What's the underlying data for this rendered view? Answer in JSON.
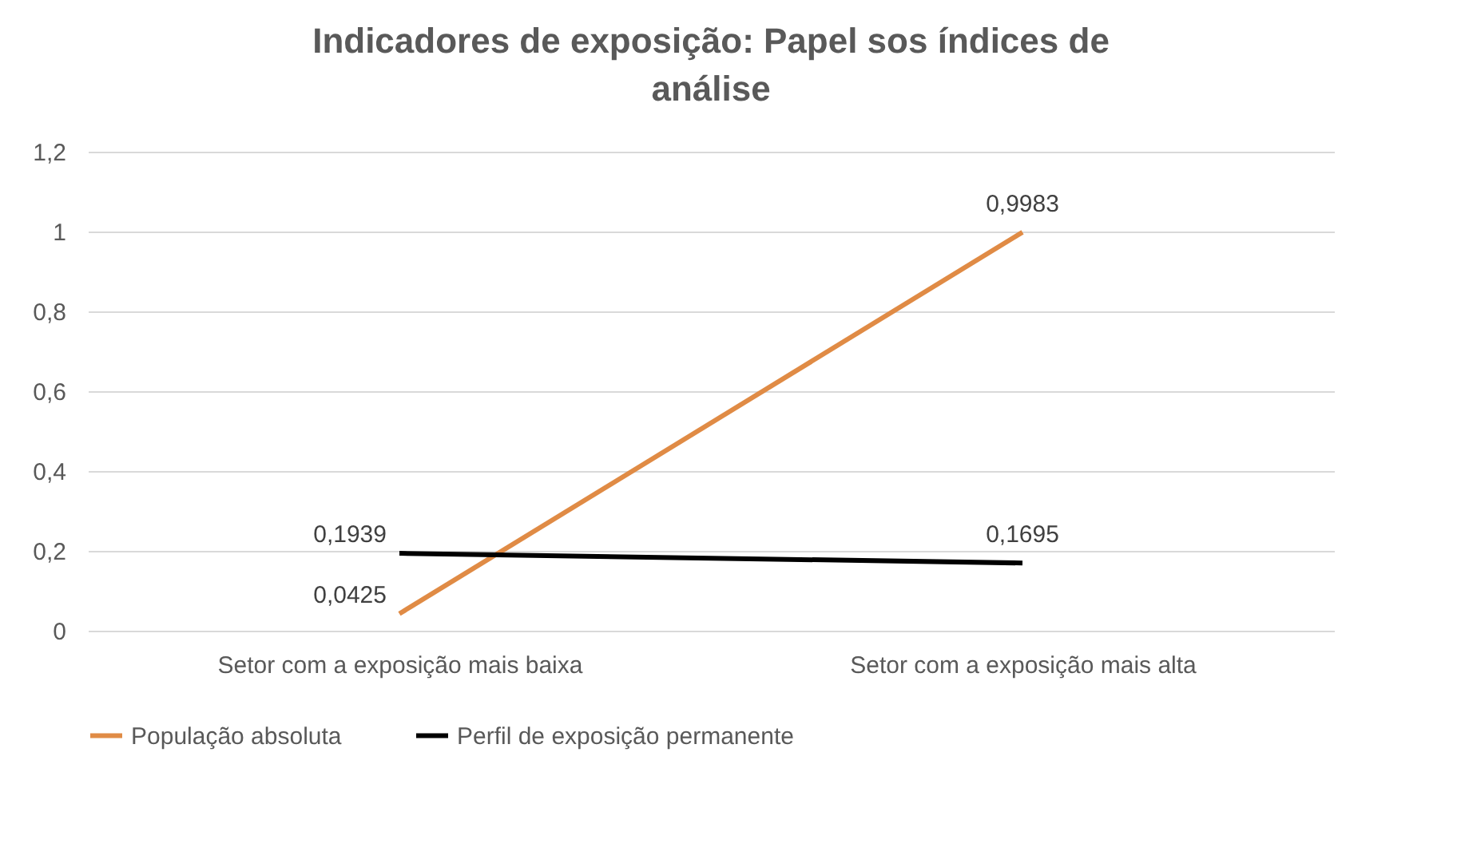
{
  "chart_data": {
    "type": "line",
    "title": "Indicadores de exposição: Papel sos índices de análise",
    "categories": [
      "Setor com a exposição mais baixa",
      "Setor com a exposição mais alta"
    ],
    "series": [
      {
        "name": "População absoluta",
        "color": "#e08b45",
        "values": [
          0.0425,
          0.9983
        ],
        "value_labels": [
          "0,0425",
          "0,9983"
        ]
      },
      {
        "name": "Perfil de exposição permanente",
        "color": "#000000",
        "values": [
          0.1939,
          0.1695
        ],
        "value_labels": [
          "0,1939",
          "0,1695"
        ]
      }
    ],
    "ylim": [
      0,
      1.2
    ],
    "yticks": [
      0,
      {
        "value": 0.2,
        "label": "0,2"
      },
      {
        "value": 0.4,
        "label": "0,4"
      },
      {
        "value": 0.6,
        "label": "0,6"
      },
      {
        "value": 0.8,
        "label": "0,8"
      },
      1,
      {
        "value": 1.2,
        "label": "1,2"
      }
    ],
    "grid": "y",
    "legend": "bottom",
    "marker": "none",
    "line_style": "solid"
  }
}
